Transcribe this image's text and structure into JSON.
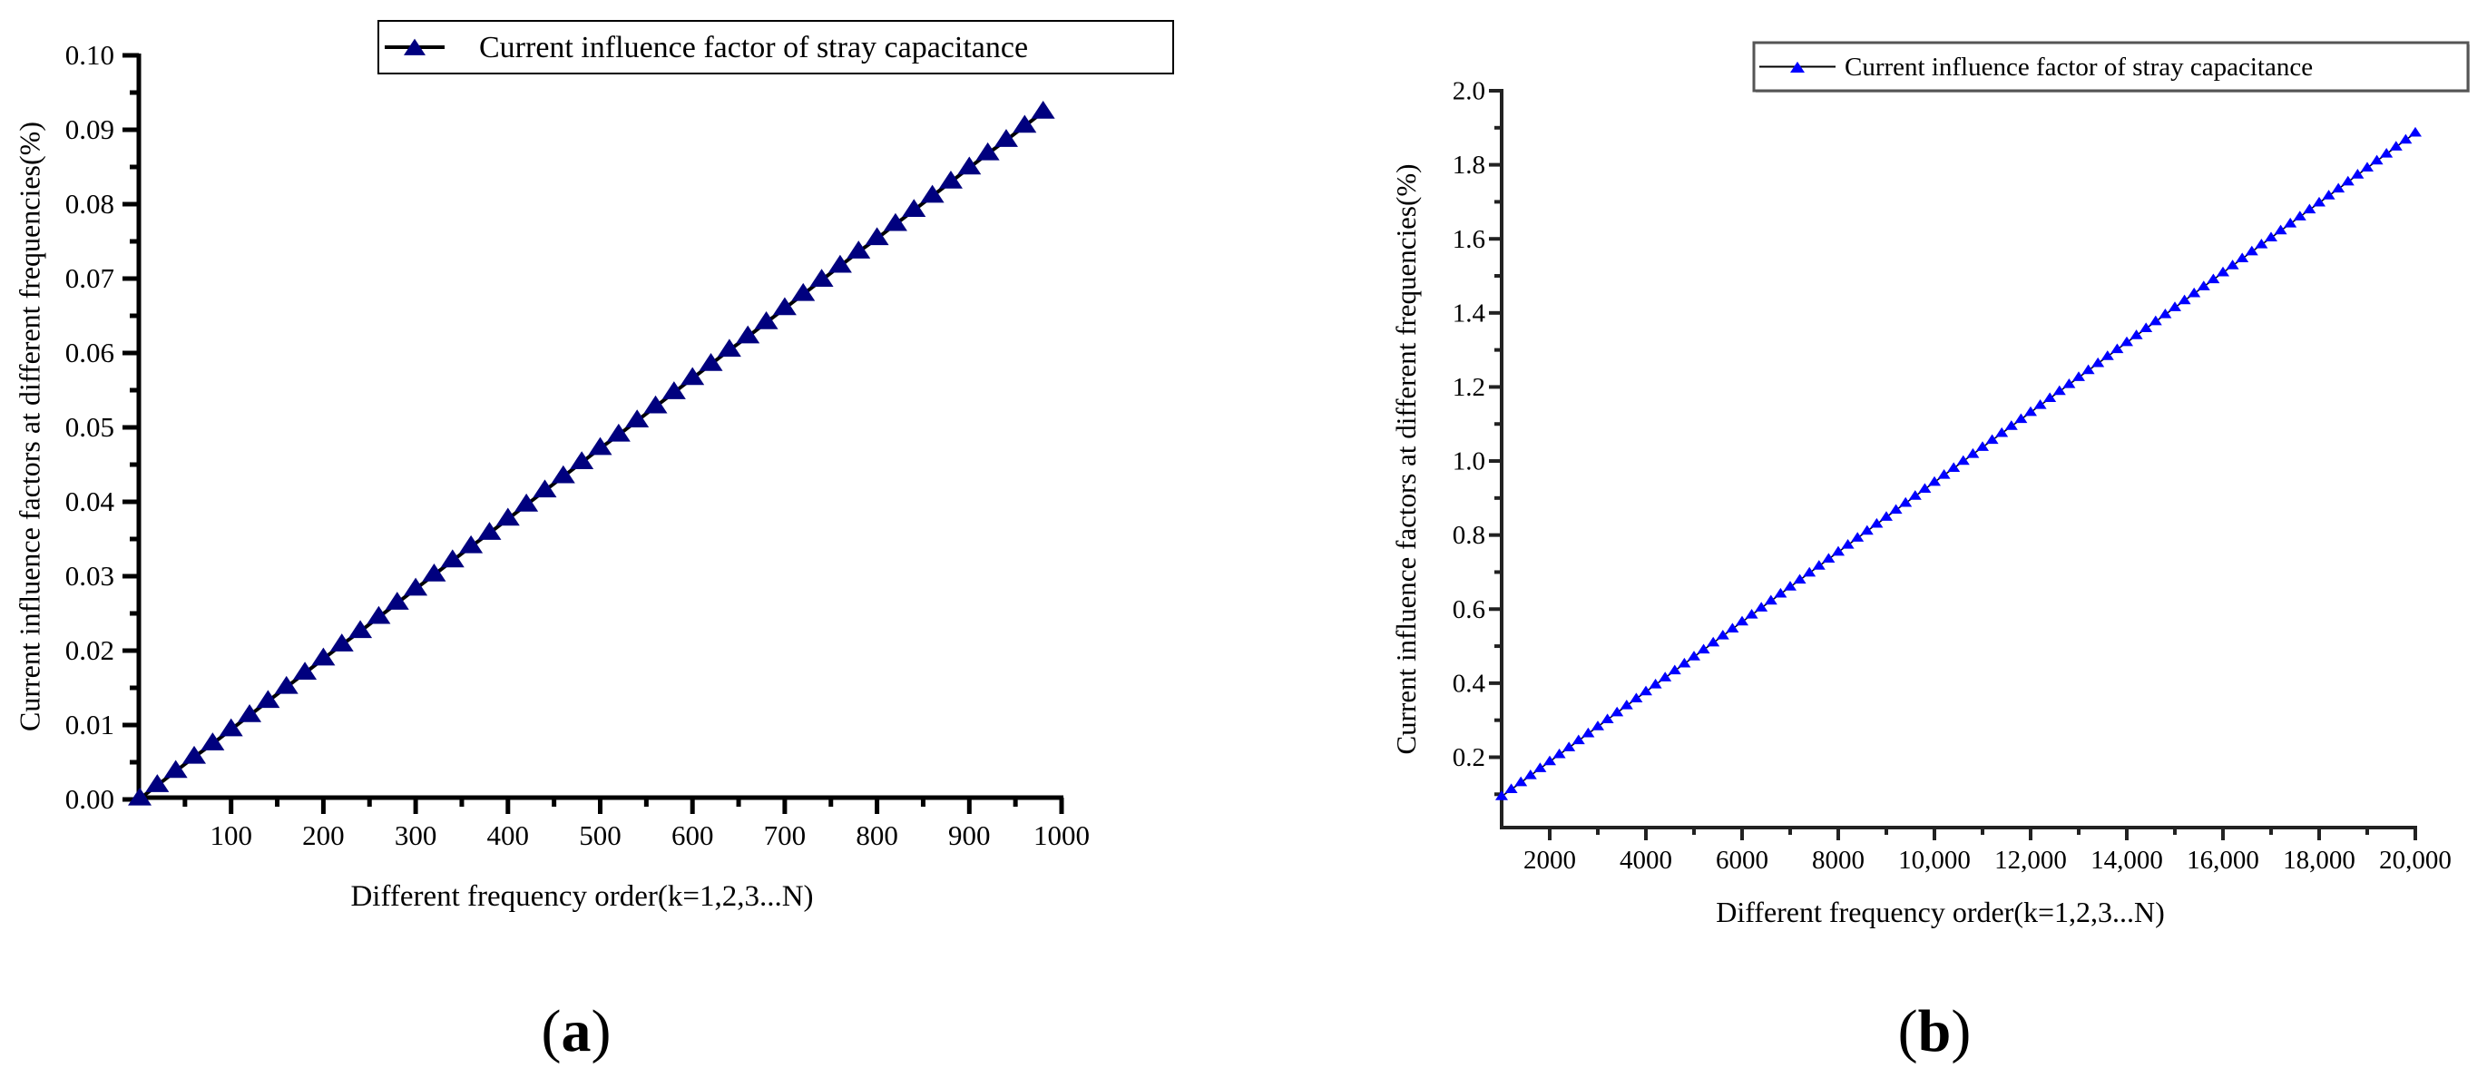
{
  "figure": {
    "panels": [
      {
        "id": "a",
        "label_open": "(",
        "label_letter": "a",
        "label_close": ")"
      },
      {
        "id": "b",
        "label_open": "(",
        "label_letter": "b",
        "label_close": ")"
      }
    ]
  },
  "chart_data": [
    {
      "panel": "a",
      "type": "line",
      "title": "",
      "xlabel": "Different frequency order(k=1,2,3...N)",
      "ylabel": "Current influence factors at different frequencies(%)",
      "xlim": [
        0,
        1000
      ],
      "ylim": [
        0.0,
        0.1
      ],
      "x_ticks": [
        100,
        200,
        300,
        400,
        500,
        600,
        700,
        800,
        900,
        1000
      ],
      "x_tick_labels": [
        "100",
        "200",
        "300",
        "400",
        "500",
        "600",
        "700",
        "800",
        "900",
        "1000"
      ],
      "y_ticks": [
        0.0,
        0.01,
        0.02,
        0.03,
        0.04,
        0.05,
        0.06,
        0.07,
        0.08,
        0.09,
        0.1
      ],
      "y_tick_labels": [
        "0.00",
        "0.01",
        "0.02",
        "0.03",
        "0.04",
        "0.05",
        "0.06",
        "0.07",
        "0.08",
        "0.09",
        "0.10"
      ],
      "grid": false,
      "legend_position": "top-right",
      "series": [
        {
          "name": "Current influence factor of stray capacitance",
          "line_color": "#000000",
          "marker": "triangle",
          "marker_color": "#00007f",
          "x": [
            1,
            20,
            40,
            60,
            80,
            100,
            120,
            140,
            160,
            180,
            200,
            220,
            240,
            260,
            280,
            300,
            320,
            340,
            360,
            380,
            400,
            420,
            440,
            460,
            480,
            500,
            520,
            540,
            560,
            580,
            600,
            620,
            640,
            660,
            680,
            700,
            720,
            740,
            760,
            780,
            800,
            820,
            840,
            860,
            880,
            900,
            920,
            940,
            960,
            980
          ],
          "values": [
            0.0001,
            0.0019,
            0.0038,
            0.0057,
            0.0075,
            0.0094,
            0.0113,
            0.0132,
            0.0151,
            0.017,
            0.0189,
            0.0208,
            0.0226,
            0.0245,
            0.0264,
            0.0283,
            0.0302,
            0.0321,
            0.034,
            0.0358,
            0.0377,
            0.0396,
            0.0415,
            0.0434,
            0.0453,
            0.0472,
            0.049,
            0.0509,
            0.0528,
            0.0547,
            0.0566,
            0.0585,
            0.0604,
            0.0622,
            0.0641,
            0.066,
            0.0679,
            0.0698,
            0.0717,
            0.0736,
            0.0754,
            0.0773,
            0.0792,
            0.0811,
            0.083,
            0.0849,
            0.0868,
            0.0886,
            0.0905,
            0.0924
          ]
        }
      ]
    },
    {
      "panel": "b",
      "type": "line",
      "title": "",
      "xlabel": "Different frequency order(k=1,2,3...N)",
      "ylabel": "Current influence factors at different frequencies(%)",
      "xlim": [
        1000,
        20000
      ],
      "ylim": [
        0.01,
        2.0
      ],
      "x_ticks": [
        2000,
        4000,
        6000,
        8000,
        10000,
        12000,
        14000,
        16000,
        18000,
        20000
      ],
      "x_tick_labels": [
        "2000",
        "4000",
        "6000",
        "8000",
        "10,000",
        "12,000",
        "14,000",
        "16,000",
        "18,000",
        "20,000"
      ],
      "y_ticks": [
        0.2,
        0.4,
        0.6,
        0.8,
        1.0,
        1.2,
        1.4,
        1.6,
        1.8,
        2.0
      ],
      "y_tick_labels": [
        "0.2",
        "0.4",
        "0.6",
        "0.8",
        "1.0",
        "1.2",
        "1.4",
        "1.6",
        "1.8",
        "2.0"
      ],
      "grid": false,
      "legend_position": "top-right",
      "series": [
        {
          "name": "Current influence factor of stray capacitance",
          "line_color": "#000000",
          "marker": "triangle",
          "marker_color": "#0000ff",
          "x_start": 1000,
          "x_end": 20000,
          "x_step": 200,
          "values_note": "linear, y = 0.0000943 * k",
          "values_endpoints": [
            0.094,
            1.886
          ]
        }
      ]
    }
  ]
}
